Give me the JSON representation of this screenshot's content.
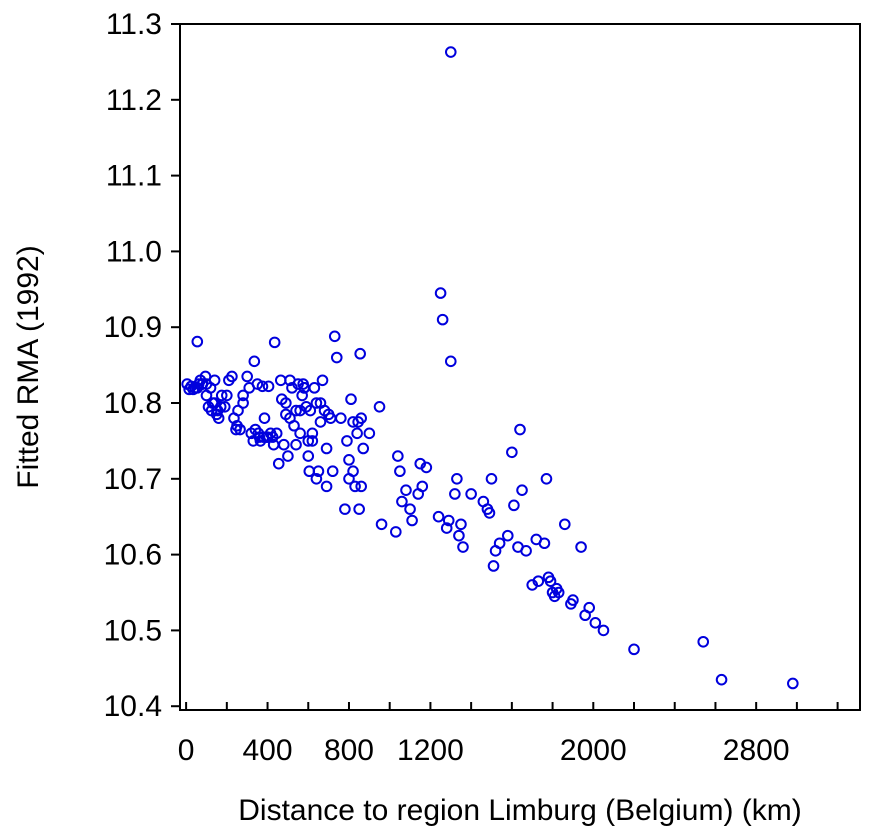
{
  "chart_data": {
    "type": "scatter",
    "title": "",
    "xlabel": "Distance to region Limburg (Belgium) (km)",
    "ylabel": "Fitted RMA (1992)",
    "xlim": [
      -30,
      3310
    ],
    "ylim": [
      10.395,
      11.3
    ],
    "x_ticks": [
      0,
      400,
      800,
      1200,
      2000,
      2800
    ],
    "x_tick_labels": [
      "0",
      "400",
      "800",
      "1200",
      "2000",
      "2800"
    ],
    "x_minor_ticks": [
      0,
      200,
      400,
      600,
      800,
      1000,
      1200,
      1400,
      1600,
      1800,
      2000,
      2200,
      2400,
      2600,
      2800,
      3000,
      3200
    ],
    "y_ticks": [
      10.4,
      10.5,
      10.6,
      10.7,
      10.8,
      10.9,
      11.0,
      11.1,
      11.2,
      11.3
    ],
    "y_tick_labels": [
      "10.4",
      "10.5",
      "10.6",
      "10.7",
      "10.8",
      "10.9",
      "11.0",
      "11.1",
      "11.2",
      "11.3"
    ],
    "grid": false,
    "legend": "none",
    "marker": "open-circle",
    "marker_color": "#0000dd",
    "series": [
      {
        "x": [
          5,
          15,
          25,
          35,
          45,
          55,
          62,
          70,
          80,
          95,
          100,
          110,
          120,
          130,
          140,
          150,
          160,
          175,
          190,
          200,
          210,
          225,
          235,
          245,
          255,
          265,
          280,
          300,
          320,
          335,
          340,
          350,
          355,
          365,
          375,
          385,
          395,
          405,
          415,
          425,
          435,
          445,
          455,
          465,
          480,
          490,
          500,
          510,
          520,
          530,
          540,
          550,
          560,
          570,
          575,
          580,
          590,
          600,
          605,
          610,
          620,
          630,
          640,
          650,
          660,
          670,
          680,
          690,
          700,
          720,
          730,
          740,
          780,
          790,
          800,
          810,
          820,
          830,
          840,
          845,
          850,
          855,
          860,
          870,
          900,
          950,
          960,
          1030,
          1040,
          1050,
          1060,
          1080,
          1100,
          1110,
          1140,
          1150,
          1160,
          1180,
          1240,
          1250,
          1260,
          1280,
          1290,
          1300,
          1320,
          1330,
          1340,
          1350,
          1360,
          1400,
          1460,
          1480,
          1490,
          1500,
          1510,
          1520,
          1540,
          1580,
          1600,
          1610,
          1630,
          1640,
          1650,
          1670,
          1700,
          1720,
          1730,
          1760,
          1770,
          1780,
          1790,
          1800,
          1810,
          1820,
          1830,
          1860,
          1890,
          1900,
          1940,
          1960,
          1980,
          2010,
          2050,
          2200,
          2540,
          2630,
          2980,
          55,
          80,
          100,
          125,
          140,
          155,
          170,
          250,
          280,
          310,
          330,
          360,
          380,
          400,
          430,
          470,
          490,
          510,
          540,
          560,
          580,
          600,
          620,
          640,
          660,
          690,
          710,
          760,
          800,
          820,
          860
        ],
        "y": [
          10.825,
          10.818,
          10.822,
          10.818,
          10.82,
          10.881,
          10.825,
          10.83,
          10.825,
          10.835,
          10.81,
          10.795,
          10.82,
          10.8,
          10.83,
          10.785,
          10.78,
          10.81,
          10.795,
          10.81,
          10.83,
          10.835,
          10.78,
          10.765,
          10.79,
          10.765,
          10.81,
          10.835,
          10.76,
          10.855,
          10.765,
          10.825,
          10.76,
          10.75,
          10.822,
          10.78,
          10.755,
          10.822,
          10.76,
          10.755,
          10.88,
          10.76,
          10.72,
          10.83,
          10.745,
          10.785,
          10.73,
          10.83,
          10.82,
          10.77,
          10.79,
          10.825,
          10.79,
          10.81,
          10.825,
          10.82,
          10.795,
          10.75,
          10.71,
          10.79,
          10.76,
          10.82,
          10.8,
          10.71,
          10.775,
          10.83,
          10.79,
          10.69,
          10.785,
          10.71,
          10.888,
          10.86,
          10.66,
          10.75,
          10.725,
          10.805,
          10.71,
          10.69,
          10.76,
          10.775,
          10.66,
          10.865,
          10.69,
          10.74,
          10.76,
          10.795,
          10.64,
          10.63,
          10.73,
          10.71,
          10.67,
          10.685,
          10.66,
          10.645,
          10.68,
          10.72,
          10.69,
          10.715,
          10.65,
          10.945,
          10.91,
          10.635,
          10.645,
          10.855,
          10.68,
          10.7,
          10.625,
          10.64,
          10.61,
          10.68,
          10.67,
          10.66,
          10.655,
          10.7,
          10.585,
          10.605,
          10.615,
          10.625,
          10.735,
          10.665,
          10.61,
          10.765,
          10.685,
          10.605,
          10.56,
          10.62,
          10.565,
          10.615,
          10.7,
          10.57,
          10.565,
          10.55,
          10.545,
          10.555,
          10.55,
          10.64,
          10.535,
          10.54,
          10.61,
          10.52,
          10.53,
          10.51,
          10.5,
          10.475,
          10.485,
          10.435,
          10.43,
          10.82,
          10.825,
          10.825,
          10.79,
          10.8,
          10.79,
          10.795,
          10.77,
          10.8,
          10.82,
          10.75,
          10.755,
          10.755,
          10.755,
          10.745,
          10.805,
          10.8,
          10.78,
          10.745,
          10.76,
          10.82,
          10.73,
          10.75,
          10.7,
          10.8,
          10.74,
          10.78,
          10.78,
          10.7,
          10.775,
          10.78
        ]
      },
      {
        "x": [
          1300
        ],
        "y": [
          11.263
        ]
      }
    ]
  }
}
